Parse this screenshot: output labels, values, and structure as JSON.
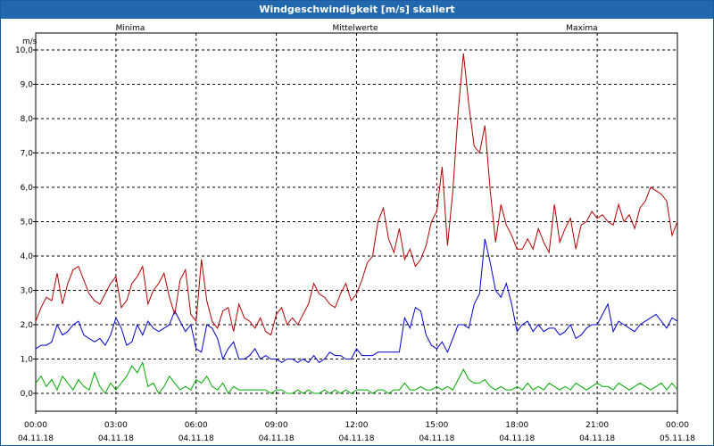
{
  "window": {
    "title": "Windgeschwindigkeit [m/s] skaliert"
  },
  "chart_data": {
    "type": "line",
    "title": "Windgeschwindigkeit [m/s] skaliert",
    "ylabel": "m/s",
    "ylim": [
      0,
      10
    ],
    "xlim_hours": [
      0,
      24
    ],
    "grid": true,
    "y_ticks": [
      "0,0",
      "1,0",
      "2,0",
      "3,0",
      "4,0",
      "5,0",
      "6,0",
      "7,0",
      "8,0",
      "9,0",
      "10,0"
    ],
    "x_ticks": [
      {
        "time": "00:00",
        "date": "04.11.18"
      },
      {
        "time": "03:00",
        "date": "04.11.18"
      },
      {
        "time": "06:00",
        "date": "04.11.18"
      },
      {
        "time": "09:00",
        "date": "04.11.18"
      },
      {
        "time": "12:00",
        "date": "04.11.18"
      },
      {
        "time": "15:00",
        "date": "04.11.18"
      },
      {
        "time": "18:00",
        "date": "04.11.18"
      },
      {
        "time": "21:00",
        "date": "04.11.18"
      },
      {
        "time": "00:00",
        "date": "05.11.18"
      }
    ],
    "x_hours": [
      0.0,
      0.2,
      0.4,
      0.6,
      0.8,
      1.0,
      1.2,
      1.4,
      1.6,
      1.8,
      2.0,
      2.2,
      2.4,
      2.6,
      2.8,
      3.0,
      3.2,
      3.4,
      3.6,
      3.8,
      4.0,
      4.2,
      4.4,
      4.6,
      4.8,
      5.0,
      5.2,
      5.4,
      5.6,
      5.8,
      6.0,
      6.2,
      6.4,
      6.6,
      6.8,
      7.0,
      7.2,
      7.4,
      7.6,
      7.8,
      8.0,
      8.2,
      8.4,
      8.6,
      8.8,
      9.0,
      9.2,
      9.4,
      9.6,
      9.8,
      10.0,
      10.2,
      10.4,
      10.6,
      10.8,
      11.0,
      11.2,
      11.4,
      11.6,
      11.8,
      12.0,
      12.2,
      12.4,
      12.6,
      12.8,
      13.0,
      13.2,
      13.4,
      13.6,
      13.8,
      14.0,
      14.2,
      14.4,
      14.6,
      14.8,
      15.0,
      15.2,
      15.4,
      15.6,
      15.8,
      16.0,
      16.2,
      16.4,
      16.6,
      16.8,
      17.0,
      17.2,
      17.4,
      17.6,
      17.8,
      18.0,
      18.2,
      18.4,
      18.6,
      18.8,
      19.0,
      19.2,
      19.4,
      19.6,
      19.8,
      20.0,
      20.2,
      20.4,
      20.6,
      20.8,
      21.0,
      21.2,
      21.4,
      21.6,
      21.8,
      22.0,
      22.2,
      22.4,
      22.6,
      22.8,
      23.0,
      23.2,
      23.4,
      23.6,
      23.8,
      24.0
    ],
    "series": [
      {
        "name": "Minima",
        "color": "#00aa00",
        "values": [
          0.3,
          0.5,
          0.2,
          0.4,
          0.1,
          0.5,
          0.3,
          0.1,
          0.4,
          0.2,
          0.1,
          0.6,
          0.2,
          0.0,
          0.3,
          0.1,
          0.3,
          0.5,
          0.8,
          0.6,
          0.9,
          0.2,
          0.3,
          0.0,
          0.2,
          0.5,
          0.3,
          0.1,
          0.2,
          0.1,
          0.4,
          0.3,
          0.5,
          0.2,
          0.1,
          0.3,
          0.0,
          0.2,
          0.1,
          0.1,
          0.1,
          0.1,
          0.1,
          0.1,
          0.0,
          0.1,
          0.1,
          0.0,
          0.0,
          0.1,
          0.0,
          0.1,
          0.0,
          0.0,
          0.1,
          0.0,
          0.1,
          0.0,
          0.1,
          0.0,
          0.1,
          0.1,
          0.1,
          0.0,
          0.1,
          0.1,
          0.0,
          0.1,
          0.1,
          0.3,
          0.1,
          0.1,
          0.2,
          0.1,
          0.1,
          0.2,
          0.1,
          0.2,
          0.1,
          0.4,
          0.7,
          0.4,
          0.3,
          0.3,
          0.4,
          0.2,
          0.1,
          0.2,
          0.1,
          0.1,
          0.2,
          0.1,
          0.3,
          0.1,
          0.2,
          0.1,
          0.3,
          0.2,
          0.1,
          0.2,
          0.1,
          0.3,
          0.2,
          0.1,
          0.2,
          0.3,
          0.2,
          0.2,
          0.1,
          0.3,
          0.2,
          0.1,
          0.2,
          0.3,
          0.2,
          0.1,
          0.2,
          0.3,
          0.1,
          0.3,
          0.1
        ]
      },
      {
        "name": "Mittelwerte",
        "color": "#0000cc",
        "values": [
          1.3,
          1.4,
          1.4,
          1.5,
          2.0,
          1.7,
          1.8,
          2.0,
          2.1,
          1.7,
          1.6,
          1.5,
          1.6,
          1.4,
          1.7,
          2.2,
          1.9,
          1.4,
          1.5,
          2.0,
          1.7,
          2.1,
          1.9,
          1.8,
          1.9,
          2.0,
          2.4,
          2.1,
          1.8,
          2.0,
          1.3,
          1.2,
          2.0,
          1.9,
          1.6,
          1.0,
          1.3,
          1.5,
          1.0,
          1.0,
          1.1,
          1.3,
          1.0,
          1.1,
          1.0,
          1.0,
          0.9,
          1.0,
          1.0,
          0.9,
          1.0,
          0.9,
          1.1,
          0.9,
          1.0,
          1.2,
          1.1,
          1.1,
          1.0,
          1.0,
          1.3,
          1.1,
          1.1,
          1.1,
          1.2,
          1.2,
          1.2,
          1.2,
          1.2,
          2.2,
          1.9,
          2.5,
          2.4,
          1.7,
          1.4,
          1.3,
          1.5,
          1.2,
          1.6,
          2.0,
          2.0,
          1.9,
          2.6,
          2.9,
          4.5,
          3.8,
          3.0,
          2.8,
          3.2,
          2.6,
          1.8,
          2.0,
          2.1,
          1.8,
          2.0,
          1.8,
          1.9,
          1.9,
          1.7,
          1.8,
          2.0,
          1.6,
          1.7,
          1.9,
          2.0,
          2.0,
          2.3,
          2.6,
          1.8,
          2.1,
          2.0,
          1.9,
          1.8,
          2.0,
          2.1,
          2.2,
          2.3,
          2.1,
          1.9,
          2.2,
          2.1
        ]
      },
      {
        "name": "Maxima",
        "color": "#b00000",
        "values": [
          2.1,
          2.5,
          2.8,
          2.7,
          3.5,
          2.6,
          3.2,
          3.6,
          3.7,
          3.3,
          2.9,
          2.7,
          2.6,
          2.9,
          3.2,
          3.4,
          2.5,
          2.7,
          3.2,
          3.4,
          3.7,
          2.6,
          3.0,
          3.2,
          3.5,
          2.8,
          2.3,
          3.3,
          3.6,
          2.3,
          2.1,
          3.9,
          2.7,
          2.1,
          1.9,
          2.4,
          2.5,
          1.8,
          2.6,
          2.2,
          2.1,
          1.9,
          2.2,
          1.8,
          1.7,
          2.3,
          2.5,
          2.0,
          2.2,
          2.0,
          2.3,
          2.6,
          3.2,
          2.9,
          2.8,
          2.6,
          2.5,
          2.9,
          3.2,
          2.7,
          2.9,
          3.3,
          3.8,
          4.0,
          5.0,
          5.4,
          4.5,
          4.1,
          4.8,
          3.9,
          4.2,
          3.7,
          3.9,
          4.3,
          5.0,
          5.3,
          6.6,
          4.3,
          5.9,
          8.2,
          9.9,
          8.4,
          7.2,
          7.0,
          7.8,
          5.9,
          4.4,
          5.5,
          4.9,
          4.6,
          4.2,
          4.2,
          4.5,
          4.2,
          4.8,
          4.4,
          4.1,
          5.5,
          4.4,
          4.8,
          5.1,
          4.2,
          4.9,
          5.0,
          5.3,
          5.1,
          5.2,
          5.0,
          4.9,
          5.5,
          5.0,
          5.2,
          4.8,
          5.4,
          5.6,
          6.0,
          5.9,
          5.8,
          5.6,
          4.6,
          5.0
        ]
      }
    ]
  }
}
